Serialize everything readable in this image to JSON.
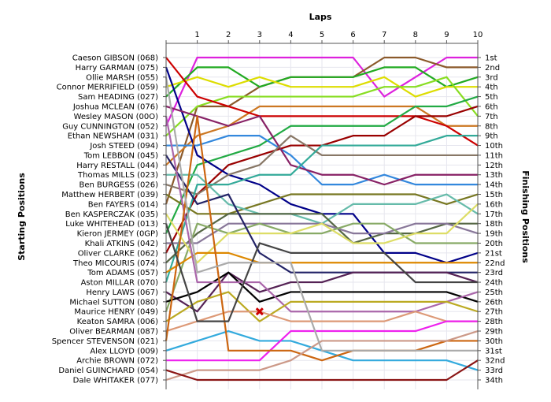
{
  "chart_data": {
    "type": "line",
    "title": "Laps",
    "xlabel": "Laps",
    "ylabel_left": "Starting Positions",
    "ylabel_right": "Finishing Positions",
    "x": [
      0,
      1,
      2,
      3,
      4,
      5,
      6,
      7,
      8,
      9,
      10
    ],
    "x_ticks": [
      "1",
      "2",
      "3",
      "4",
      "5",
      "6",
      "7",
      "8",
      "9",
      "10"
    ],
    "ylim": [
      1,
      34
    ],
    "grid": true,
    "starting_labels": [
      "Caeson GIBSON (068)",
      "Harry GARMAN (075)",
      "Ollie MARSH (055)",
      "Connor MERRIFIELD (059)",
      "Sam HEADING (027)",
      "Joshua MCLEAN (076)",
      "Wesley MASON (00O)",
      "Guy CUNNINGTON (052)",
      "Ethan NEWSHAM (031)",
      "Josh STEED (094)",
      "Tom LEBBON (045)",
      "Harry RESTALL (044)",
      "Thomas MILLS (023)",
      "Ben BURGESS (026)",
      "Matthew HERBERT (039)",
      "Ben FAYERS (014)",
      "Ben KASPERCZAK (035)",
      "Luke WHITEHEAD (013)",
      "Kieron JERMEY (0GP)",
      "Khali ATKINS (042)",
      "Oliver CLARKE (062)",
      "Theo MICOURIS (074)",
      "Tom ADAMS (057)",
      "Aston MILLAR (070)",
      "Henry LAWS (067)",
      "Michael SUTTON (080)",
      "Maurice HENRY (049)",
      "Keaton SAMRA (006)",
      "Oliver BEARMAN (087)",
      "Spencer STEVENSON (021)",
      "Alex LLOYD (009)",
      "Archie BROWN (072)",
      "Daniel GUINCHARD (054)",
      "Dale WHITAKER (077)"
    ],
    "finishing_labels": [
      "1st",
      "2nd",
      "3rd",
      "4th",
      "5th",
      "6th",
      "7th",
      "8th",
      "9th",
      "10th",
      "11th",
      "12th",
      "13th",
      "14th",
      "15th",
      "16th",
      "17th",
      "18th",
      "19th",
      "20th",
      "21st",
      "22nd",
      "23rd",
      "24th",
      "25th",
      "26th",
      "27th",
      "28th",
      "29th",
      "30th",
      "31st",
      "32nd",
      "33rd",
      "34th"
    ],
    "series": [
      {
        "color": "#dd22dd",
        "values": [
          8,
          1,
          1,
          1,
          1,
          1,
          1,
          5,
          3,
          1,
          1
        ]
      },
      {
        "color": "#8b5a2b",
        "values": [
          16,
          6,
          6,
          4,
          3,
          3,
          3,
          1,
          1,
          2,
          2
        ]
      },
      {
        "color": "#22aa22",
        "values": [
          5,
          2,
          2,
          4,
          3,
          3,
          3,
          2,
          2,
          4,
          3
        ]
      },
      {
        "color": "#dddd00",
        "values": [
          4,
          3,
          4,
          3,
          4,
          4,
          4,
          3,
          5,
          4,
          4
        ]
      },
      {
        "color": "#88dd22",
        "values": [
          9,
          6,
          5,
          5,
          5,
          5,
          5,
          4,
          4,
          3,
          7
        ]
      },
      {
        "color": "#cc7722",
        "values": [
          12,
          9,
          8,
          6,
          6,
          6,
          6,
          6,
          6,
          8,
          8
        ]
      },
      {
        "color": "#cc0000",
        "values": [
          1,
          5,
          6,
          7,
          7,
          7,
          7,
          7,
          7,
          8,
          10
        ]
      },
      {
        "color": "#22aa44",
        "values": [
          19,
          12,
          11,
          10,
          8,
          8,
          8,
          8,
          6,
          6,
          5
        ]
      },
      {
        "color": "#3388dd",
        "values": [
          10,
          10,
          9,
          9,
          11,
          14,
          14,
          13,
          14,
          14,
          14
        ]
      },
      {
        "color": "#990000",
        "values": [
          21,
          15,
          12,
          11,
          10,
          10,
          9,
          9,
          7,
          7,
          6
        ]
      },
      {
        "color": "#000088",
        "values": [
          2,
          11,
          13,
          14,
          16,
          17,
          17,
          21,
          21,
          22,
          21
        ]
      },
      {
        "color": "#882266",
        "values": [
          6,
          7,
          8,
          7,
          12,
          13,
          13,
          14,
          13,
          13,
          13
        ]
      },
      {
        "color": "#887766",
        "values": [
          14,
          15,
          13,
          12,
          9,
          11,
          11,
          11,
          11,
          11,
          11
        ]
      },
      {
        "color": "#33aa99",
        "values": [
          24,
          14,
          14,
          13,
          13,
          10,
          10,
          10,
          10,
          9,
          9
        ]
      },
      {
        "color": "#777722",
        "values": [
          15,
          17,
          17,
          16,
          15,
          15,
          15,
          15,
          15,
          16,
          15
        ]
      },
      {
        "color": "#66bbaa",
        "values": [
          13,
          13,
          16,
          17,
          17,
          18,
          16,
          16,
          16,
          15,
          17
        ]
      },
      {
        "color": "#556644",
        "values": [
          22,
          19,
          17,
          17,
          17,
          17,
          20,
          19,
          19,
          18,
          18
        ]
      },
      {
        "color": "#887799",
        "values": [
          20,
          20,
          18,
          18,
          18,
          18,
          19,
          19,
          18,
          18,
          19
        ]
      },
      {
        "color": "#88aa66",
        "values": [
          27,
          18,
          19,
          18,
          19,
          19,
          18,
          18,
          20,
          20,
          20
        ]
      },
      {
        "color": "#dddd66",
        "values": [
          17,
          22,
          19,
          19,
          19,
          18,
          20,
          20,
          19,
          19,
          16
        ]
      },
      {
        "color": "#dd8800",
        "values": [
          23,
          21,
          21,
          22,
          22,
          22,
          22,
          22,
          22,
          22,
          22
        ]
      },
      {
        "color": "#222266",
        "values": [
          11,
          16,
          15,
          21,
          23,
          23,
          23,
          23,
          23,
          23,
          23
        ]
      },
      {
        "color": "#552255",
        "values": [
          25,
          27,
          23,
          25,
          24,
          24,
          23,
          23,
          23,
          23,
          24
        ]
      },
      {
        "color": "#000000",
        "values": [
          26,
          25,
          23,
          26,
          25,
          25,
          25,
          25,
          25,
          25,
          26
        ]
      },
      {
        "color": "#aa66aa",
        "values": [
          7,
          24,
          24,
          24,
          27,
          27,
          27,
          27,
          27,
          26,
          25
        ]
      },
      {
        "color": "#bbaa22",
        "values": [
          28,
          26,
          25,
          28,
          26,
          26,
          26,
          26,
          26,
          26,
          27
        ]
      },
      {
        "color": "#33aadd",
        "values": [
          31,
          30,
          29,
          30,
          30,
          31,
          32,
          32,
          32,
          32,
          33
        ]
      },
      {
        "color": "#dd9977",
        "values": [
          29,
          28,
          27,
          27,
          28,
          28,
          28,
          28,
          27,
          28,
          28
        ]
      },
      {
        "color": "#ee22ee",
        "values": [
          32,
          32,
          32,
          32,
          29,
          29,
          29,
          29,
          29,
          28,
          28
        ]
      },
      {
        "color": "#cc6611",
        "values": [
          30,
          7,
          31,
          31,
          31,
          32,
          31,
          31,
          31,
          30,
          30
        ]
      },
      {
        "color": "#cc9988",
        "values": [
          34,
          33,
          33,
          33,
          32,
          30,
          30,
          30,
          30,
          30,
          29
        ]
      },
      {
        "color": "#8a1515",
        "values": [
          33,
          34,
          34,
          34,
          34,
          34,
          34,
          34,
          34,
          34,
          32
        ]
      },
      {
        "color": "#444444",
        "values": [
          18,
          28,
          28,
          20,
          21,
          21,
          21,
          21,
          24,
          24,
          24
        ]
      },
      {
        "color": "#aaaaaa",
        "values": [
          3,
          23,
          22,
          22,
          22,
          31,
          31,
          31,
          31,
          31,
          31
        ]
      }
    ],
    "marker": {
      "shape": "x",
      "color": "#cc0000",
      "lap": 3,
      "position": 27
    }
  }
}
